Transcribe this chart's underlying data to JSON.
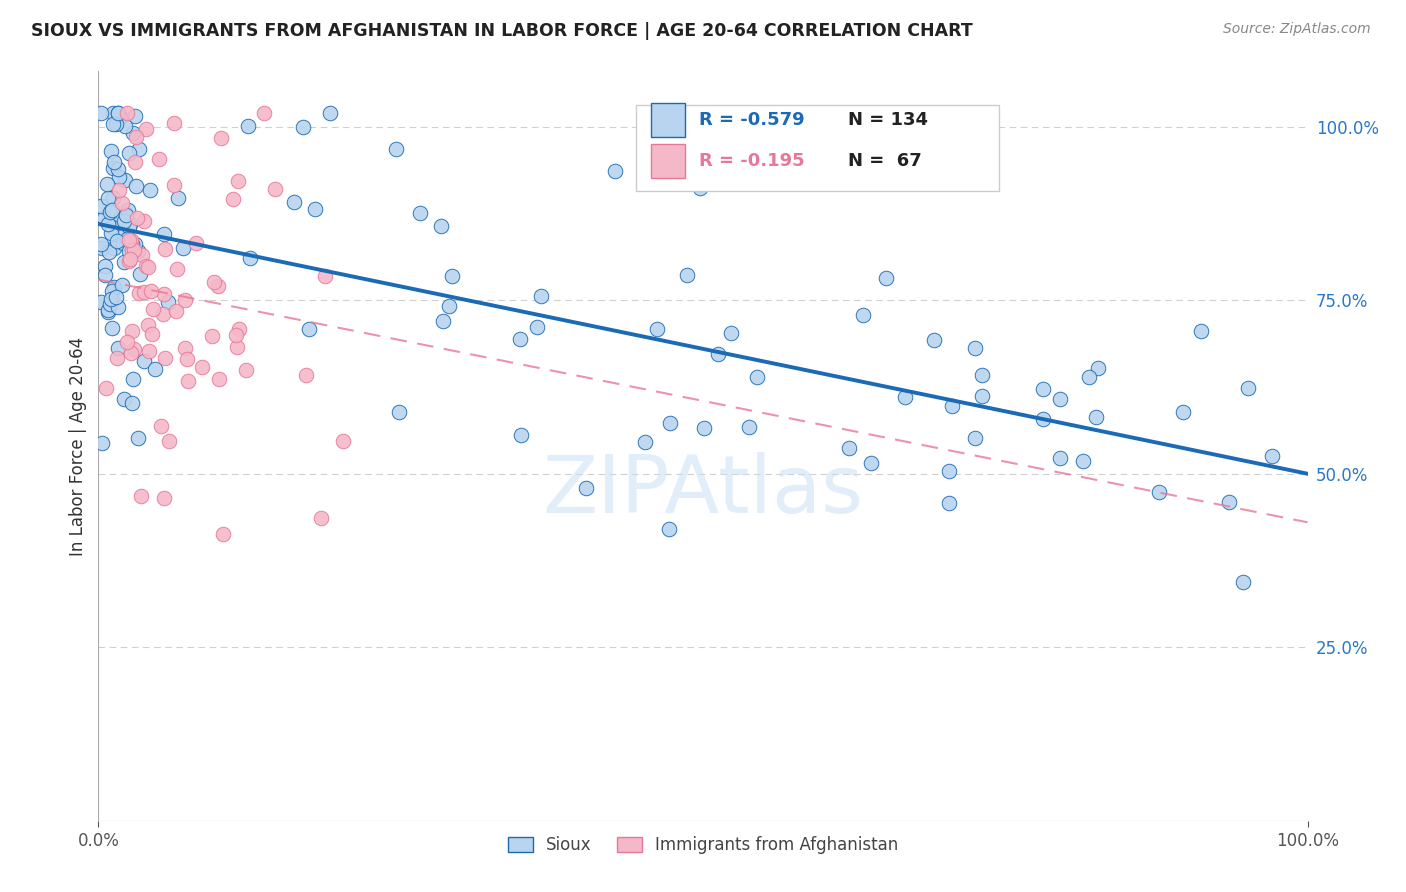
{
  "title": "SIOUX VS IMMIGRANTS FROM AFGHANISTAN IN LABOR FORCE | AGE 20-64 CORRELATION CHART",
  "source_text": "Source: ZipAtlas.com",
  "ylabel": "In Labor Force | Age 20-64",
  "watermark": "ZIPAtlas",
  "legend_blue_R": "-0.579",
  "legend_blue_N": "134",
  "legend_pink_R": "-0.195",
  "legend_pink_N": "67",
  "blue_color": "#b8d4ee",
  "pink_color": "#f5b8c8",
  "blue_line_color": "#1a6ab5",
  "pink_line_color": "#e87898",
  "blue_trend": [
    0.0,
    0.86,
    1.0,
    0.5
  ],
  "pink_trend": [
    0.0,
    0.78,
    1.0,
    0.43
  ]
}
